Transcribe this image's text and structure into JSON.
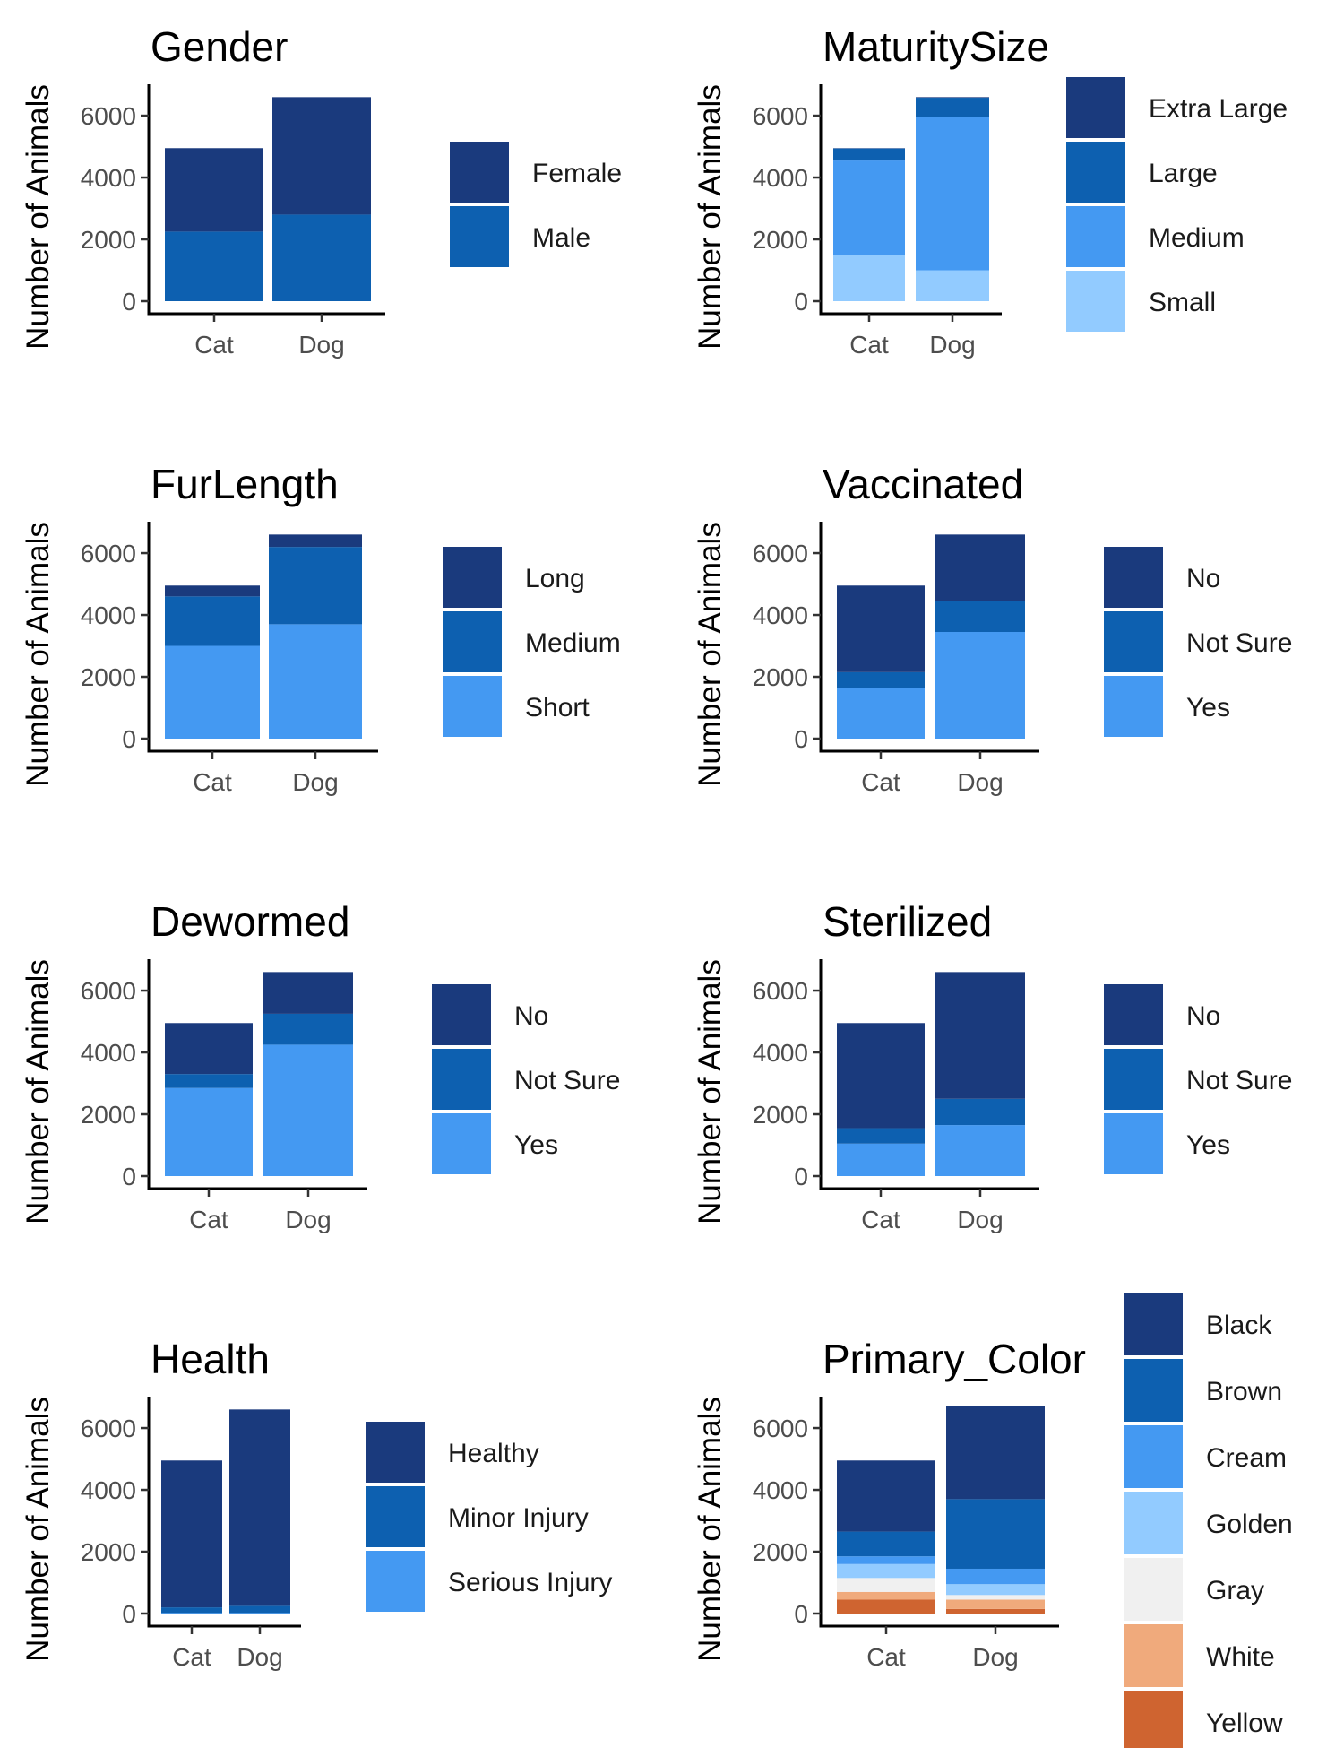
{
  "colors": {
    "navy": "#1a3a7d",
    "dark_blue": "#0d60b0",
    "mid_blue": "#4499f2",
    "light_blue": "#92cbff",
    "gray": "#f0f0f0",
    "peach": "#f0aa7c",
    "orange": "#cf6430"
  },
  "chart_data": [
    {
      "type": "bar",
      "stacked": true,
      "title": "Gender",
      "ylabel": "Number of Animals",
      "categories": [
        "Cat",
        "Dog"
      ],
      "yticks": [
        0,
        2000,
        4000,
        6000
      ],
      "ylim": [
        0,
        6900
      ],
      "legend_position": "right",
      "series": [
        {
          "name": "Female",
          "color": "#1a3a7d",
          "values": [
            2700,
            3800
          ]
        },
        {
          "name": "Male",
          "color": "#0d60b0",
          "values": [
            2250,
            2800
          ]
        }
      ]
    },
    {
      "type": "bar",
      "stacked": true,
      "title": "MaturitySize",
      "ylabel": "Number of Animals",
      "categories": [
        "Cat",
        "Dog"
      ],
      "yticks": [
        0,
        2000,
        4000,
        6000
      ],
      "ylim": [
        0,
        6900
      ],
      "legend_position": "right",
      "series": [
        {
          "name": "Extra Large",
          "color": "#1a3a7d",
          "values": [
            10,
            20
          ]
        },
        {
          "name": "Large",
          "color": "#0d60b0",
          "values": [
            390,
            630
          ]
        },
        {
          "name": "Medium",
          "color": "#4499f2",
          "values": [
            3050,
            4950
          ]
        },
        {
          "name": "Small",
          "color": "#92cbff",
          "values": [
            1500,
            1000
          ]
        }
      ]
    },
    {
      "type": "bar",
      "stacked": true,
      "title": "FurLength",
      "ylabel": "Number of Animals",
      "categories": [
        "Cat",
        "Dog"
      ],
      "yticks": [
        0,
        2000,
        4000,
        6000
      ],
      "ylim": [
        0,
        6900
      ],
      "legend_position": "right",
      "series": [
        {
          "name": "Long",
          "color": "#1a3a7d",
          "values": [
            350,
            400
          ]
        },
        {
          "name": "Medium",
          "color": "#0d60b0",
          "values": [
            1600,
            2500
          ]
        },
        {
          "name": "Short",
          "color": "#4499f2",
          "values": [
            3000,
            3700
          ]
        }
      ]
    },
    {
      "type": "bar",
      "stacked": true,
      "title": "Vaccinated",
      "ylabel": "Number of Animals",
      "categories": [
        "Cat",
        "Dog"
      ],
      "yticks": [
        0,
        2000,
        4000,
        6000
      ],
      "ylim": [
        0,
        6900
      ],
      "legend_position": "right",
      "series": [
        {
          "name": "No",
          "color": "#1a3a7d",
          "values": [
            2800,
            2150
          ]
        },
        {
          "name": "Not Sure",
          "color": "#0d60b0",
          "values": [
            500,
            1000
          ]
        },
        {
          "name": "Yes",
          "color": "#4499f2",
          "values": [
            1650,
            3450
          ]
        }
      ]
    },
    {
      "type": "bar",
      "stacked": true,
      "title": "Dewormed",
      "ylabel": "Number of Animals",
      "categories": [
        "Cat",
        "Dog"
      ],
      "yticks": [
        0,
        2000,
        4000,
        6000
      ],
      "ylim": [
        0,
        6900
      ],
      "legend_position": "right",
      "series": [
        {
          "name": "No",
          "color": "#1a3a7d",
          "values": [
            1650,
            1350
          ]
        },
        {
          "name": "Not Sure",
          "color": "#0d60b0",
          "values": [
            450,
            1000
          ]
        },
        {
          "name": "Yes",
          "color": "#4499f2",
          "values": [
            2850,
            4250
          ]
        }
      ]
    },
    {
      "type": "bar",
      "stacked": true,
      "title": "Sterilized",
      "ylabel": "Number of Animals",
      "categories": [
        "Cat",
        "Dog"
      ],
      "yticks": [
        0,
        2000,
        4000,
        6000
      ],
      "ylim": [
        0,
        6900
      ],
      "legend_position": "right",
      "series": [
        {
          "name": "No",
          "color": "#1a3a7d",
          "values": [
            3400,
            4100
          ]
        },
        {
          "name": "Not Sure",
          "color": "#0d60b0",
          "values": [
            500,
            850
          ]
        },
        {
          "name": "Yes",
          "color": "#4499f2",
          "values": [
            1050,
            1650
          ]
        }
      ]
    },
    {
      "type": "bar",
      "stacked": true,
      "title": "Health",
      "ylabel": "Number of Animals",
      "categories": [
        "Cat",
        "Dog"
      ],
      "yticks": [
        0,
        2000,
        4000,
        6000
      ],
      "ylim": [
        0,
        6900
      ],
      "legend_position": "right",
      "series": [
        {
          "name": "Healthy",
          "color": "#1a3a7d",
          "values": [
            4750,
            6350
          ]
        },
        {
          "name": "Minor Injury",
          "color": "#0d60b0",
          "values": [
            180,
            230
          ]
        },
        {
          "name": "Serious Injury",
          "color": "#4499f2",
          "values": [
            20,
            20
          ]
        }
      ]
    },
    {
      "type": "bar",
      "stacked": true,
      "title": "Primary_Color",
      "ylabel": "Number of Animals",
      "categories": [
        "Cat",
        "Dog"
      ],
      "yticks": [
        0,
        2000,
        4000,
        6000
      ],
      "ylim": [
        0,
        6900
      ],
      "legend_position": "right",
      "series": [
        {
          "name": "Black",
          "color": "#1a3a7d",
          "values": [
            2300,
            3000
          ]
        },
        {
          "name": "Brown",
          "color": "#0d60b0",
          "values": [
            800,
            2250
          ]
        },
        {
          "name": "Cream",
          "color": "#4499f2",
          "values": [
            250,
            500
          ]
        },
        {
          "name": "Golden",
          "color": "#92cbff",
          "values": [
            450,
            350
          ]
        },
        {
          "name": "Gray",
          "color": "#f0f0f0",
          "values": [
            450,
            150
          ]
        },
        {
          "name": "White",
          "color": "#f0aa7c",
          "values": [
            250,
            300
          ]
        },
        {
          "name": "Yellow",
          "color": "#cf6430",
          "values": [
            450,
            150
          ]
        }
      ]
    }
  ]
}
